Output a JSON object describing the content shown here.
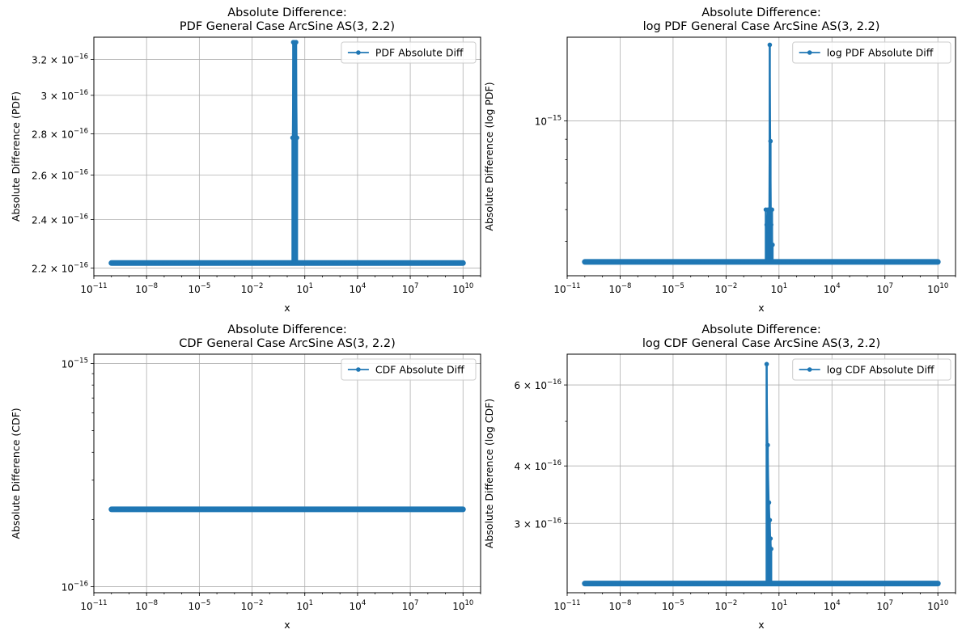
{
  "colors": {
    "series": "#1f77b4",
    "grid": "#b0b0b0",
    "frame": "#000000"
  },
  "chart_data": [
    {
      "type": "line",
      "title": [
        "Absolute Difference:",
        "PDF General Case ArcSine AS(3, 2.2)"
      ],
      "xlabel": "x",
      "ylabel": "Absolute Difference (PDF)",
      "xscale": "log",
      "yscale": "log",
      "xlim": [
        1e-11,
        100000000000.0
      ],
      "ylim": [
        2.17e-16,
        3.33e-16
      ],
      "x_ticks": [
        {
          "value": 1e-11,
          "base": "10",
          "exp": "−11"
        },
        {
          "value": 1e-08,
          "base": "10",
          "exp": "−8"
        },
        {
          "value": 1e-05,
          "base": "10",
          "exp": "−5"
        },
        {
          "value": 0.01,
          "base": "10",
          "exp": "−2"
        },
        {
          "value": 10,
          "base": "10",
          "exp": "1"
        },
        {
          "value": 10000.0,
          "base": "10",
          "exp": "4"
        },
        {
          "value": 10000000.0,
          "base": "10",
          "exp": "7"
        },
        {
          "value": 10000000000.0,
          "base": "10",
          "exp": "10"
        }
      ],
      "y_ticks": [
        {
          "value": 2.2e-16,
          "base": "2.2 × 10",
          "exp": "−16"
        },
        {
          "value": 2.4e-16,
          "base": "2.4 × 10",
          "exp": "−16"
        },
        {
          "value": 2.6e-16,
          "base": "2.6 × 10",
          "exp": "−16"
        },
        {
          "value": 2.8e-16,
          "base": "2.8 × 10",
          "exp": "−16"
        },
        {
          "value": 3e-16,
          "base": "3 × 10",
          "exp": "−16"
        },
        {
          "value": 3.2e-16,
          "base": "3.2 × 10",
          "exp": "−16"
        }
      ],
      "y_minor_ticks": [],
      "grid": true,
      "legend": {
        "label": "PDF Absolute Diff",
        "position": "top-right"
      },
      "series": {
        "baseline": 2.22e-16,
        "x_range": [
          1e-10,
          10000000000.0
        ],
        "spikes": [
          {
            "x": 2.0,
            "y": 2.78e-16
          },
          {
            "x": 2.2,
            "y": 3.3e-16
          },
          {
            "x": 2.5,
            "y": 3.3e-16
          },
          {
            "x": 3.2,
            "y": 3.3e-16
          },
          {
            "x": 3.6,
            "y": 2.78e-16
          }
        ]
      }
    },
    {
      "type": "line",
      "title": [
        "Absolute Difference:",
        "log PDF General Case ArcSine AS(3, 2.2)"
      ],
      "xlabel": "x",
      "ylabel": "Absolute Difference (log PDF)",
      "xscale": "log",
      "yscale": "log",
      "xlim": [
        1e-11,
        100000000000.0
      ],
      "ylim": [
        4.1e-16,
        1.62e-15
      ],
      "x_ticks": [
        {
          "value": 1e-11,
          "base": "10",
          "exp": "−11"
        },
        {
          "value": 1e-08,
          "base": "10",
          "exp": "−8"
        },
        {
          "value": 1e-05,
          "base": "10",
          "exp": "−5"
        },
        {
          "value": 0.01,
          "base": "10",
          "exp": "−2"
        },
        {
          "value": 10,
          "base": "10",
          "exp": "1"
        },
        {
          "value": 10000.0,
          "base": "10",
          "exp": "4"
        },
        {
          "value": 10000000.0,
          "base": "10",
          "exp": "7"
        },
        {
          "value": 10000000000.0,
          "base": "10",
          "exp": "10"
        }
      ],
      "y_ticks": [
        {
          "value": 1e-15,
          "base": "10",
          "exp": "−15"
        }
      ],
      "y_minor_ticks": [
        5e-16,
        6e-16,
        7e-16,
        8e-16,
        9e-16
      ],
      "grid": true,
      "legend": {
        "label": "log PDF Absolute Diff",
        "position": "top-right"
      },
      "series": {
        "baseline": 4.44e-16,
        "x_range": [
          1e-10,
          10000000000.0
        ],
        "spikes": [
          {
            "x": 1.8,
            "y": 6e-16
          },
          {
            "x": 2.0,
            "y": 5.5e-16
          },
          {
            "x": 2.4,
            "y": 6e-16
          },
          {
            "x": 2.7,
            "y": 5.2e-16
          },
          {
            "x": 3.0,
            "y": 1.55e-15
          },
          {
            "x": 3.3,
            "y": 8.9e-16
          },
          {
            "x": 3.6,
            "y": 5.5e-16
          },
          {
            "x": 4.0,
            "y": 6e-16
          },
          {
            "x": 4.3,
            "y": 4.9e-16
          }
        ]
      }
    },
    {
      "type": "line",
      "title": [
        "Absolute Difference:",
        "CDF General Case ArcSine AS(3, 2.2)"
      ],
      "xlabel": "x",
      "ylabel": "Absolute Difference (CDF)",
      "xscale": "log",
      "yscale": "log",
      "xlim": [
        1e-11,
        100000000000.0
      ],
      "ylim": [
        9.4e-17,
        1.1e-15
      ],
      "x_ticks": [
        {
          "value": 1e-11,
          "base": "10",
          "exp": "−11"
        },
        {
          "value": 1e-08,
          "base": "10",
          "exp": "−8"
        },
        {
          "value": 1e-05,
          "base": "10",
          "exp": "−5"
        },
        {
          "value": 0.01,
          "base": "10",
          "exp": "−2"
        },
        {
          "value": 10,
          "base": "10",
          "exp": "1"
        },
        {
          "value": 10000.0,
          "base": "10",
          "exp": "4"
        },
        {
          "value": 10000000.0,
          "base": "10",
          "exp": "7"
        },
        {
          "value": 10000000000.0,
          "base": "10",
          "exp": "10"
        }
      ],
      "y_ticks": [
        {
          "value": 1e-16,
          "base": "10",
          "exp": "−16"
        },
        {
          "value": 1e-15,
          "base": "10",
          "exp": "−15"
        }
      ],
      "y_minor_ticks": [
        2e-16,
        3e-16,
        4e-16,
        5e-16,
        6e-16,
        7e-16,
        8e-16,
        9e-16
      ],
      "grid": true,
      "legend": {
        "label": "CDF Absolute Diff",
        "position": "top-right"
      },
      "series": {
        "baseline": 2.22e-16,
        "x_range": [
          1e-10,
          10000000000.0
        ],
        "spikes": []
      }
    },
    {
      "type": "line",
      "title": [
        "Absolute Difference:",
        "log CDF General Case ArcSine AS(3, 2.2)"
      ],
      "xlabel": "x",
      "ylabel": "Absolute Difference (log CDF)",
      "xscale": "log",
      "yscale": "log",
      "xlim": [
        1e-11,
        100000000000.0
      ],
      "ylim": [
        2.12e-16,
        7e-16
      ],
      "x_ticks": [
        {
          "value": 1e-11,
          "base": "10",
          "exp": "−11"
        },
        {
          "value": 1e-08,
          "base": "10",
          "exp": "−8"
        },
        {
          "value": 1e-05,
          "base": "10",
          "exp": "−5"
        },
        {
          "value": 0.01,
          "base": "10",
          "exp": "−2"
        },
        {
          "value": 10,
          "base": "10",
          "exp": "1"
        },
        {
          "value": 10000.0,
          "base": "10",
          "exp": "4"
        },
        {
          "value": 10000000.0,
          "base": "10",
          "exp": "7"
        },
        {
          "value": 10000000000.0,
          "base": "10",
          "exp": "10"
        }
      ],
      "y_ticks": [
        {
          "value": 3e-16,
          "base": "3 × 10",
          "exp": "−16"
        },
        {
          "value": 4e-16,
          "base": "4 × 10",
          "exp": "−16"
        },
        {
          "value": 6e-16,
          "base": "6 × 10",
          "exp": "−16"
        }
      ],
      "y_minor_ticks": [
        5e-16
      ],
      "grid": true,
      "legend": {
        "label": "log CDF Absolute Diff",
        "position": "top-right"
      },
      "series": {
        "baseline": 2.22e-16,
        "x_range": [
          1e-10,
          10000000000.0
        ],
        "spikes": [
          {
            "x": 2.0,
            "y": 6.66e-16
          },
          {
            "x": 2.3,
            "y": 4.44e-16
          },
          {
            "x": 2.7,
            "y": 3.33e-16
          },
          {
            "x": 3.0,
            "y": 3.05e-16
          },
          {
            "x": 3.3,
            "y": 2.78e-16
          },
          {
            "x": 3.6,
            "y": 2.64e-16
          }
        ]
      }
    }
  ]
}
